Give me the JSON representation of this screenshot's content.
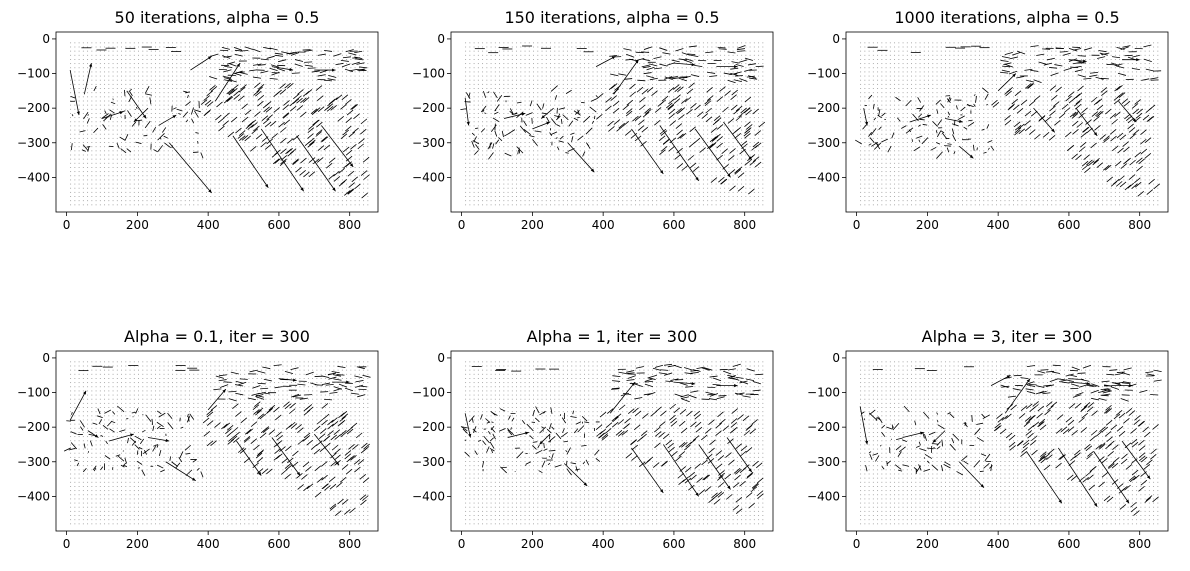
{
  "figure": {
    "background": "#ffffff"
  },
  "chart_data": [
    {
      "type": "quiver",
      "title": "50 iterations, alpha = 0.5",
      "xlim": [
        -30,
        880
      ],
      "ylim": [
        -500,
        20
      ],
      "xticks": [
        0,
        200,
        400,
        600,
        800
      ],
      "yticks": [
        0,
        -100,
        -200,
        -300,
        -400
      ],
      "grid": false,
      "vectors": [
        {
          "x": 290,
          "y": -300,
          "u": 120,
          "v": -145
        },
        {
          "x": 10,
          "y": -90,
          "u": 25,
          "v": -130
        },
        {
          "x": 170,
          "y": -150,
          "u": 55,
          "v": -80
        },
        {
          "x": 420,
          "y": -180,
          "u": 70,
          "v": 110
        },
        {
          "x": 470,
          "y": -280,
          "u": 100,
          "v": -150
        },
        {
          "x": 550,
          "y": -260,
          "u": 120,
          "v": -180
        },
        {
          "x": 650,
          "y": -280,
          "u": 110,
          "v": -160
        },
        {
          "x": 720,
          "y": -250,
          "u": 90,
          "v": -120
        },
        {
          "x": 100,
          "y": -230,
          "u": 60,
          "v": 20
        },
        {
          "x": 230,
          "y": -200,
          "u": -40,
          "v": -40
        },
        {
          "x": 350,
          "y": -90,
          "u": 60,
          "v": 40
        },
        {
          "x": 580,
          "y": -80,
          "u": 60,
          "v": -10
        },
        {
          "x": 700,
          "y": -90,
          "u": 60,
          "v": 0
        },
        {
          "x": 260,
          "y": -250,
          "u": 50,
          "v": 30
        },
        {
          "x": 50,
          "y": -160,
          "u": 20,
          "v": 90
        }
      ]
    },
    {
      "type": "quiver",
      "title": "150 iterations, alpha = 0.5",
      "xlim": [
        -30,
        880
      ],
      "ylim": [
        -500,
        20
      ],
      "xticks": [
        0,
        200,
        400,
        600,
        800
      ],
      "yticks": [
        0,
        -100,
        -200,
        -300,
        -400
      ],
      "grid": false,
      "vectors": [
        {
          "x": 300,
          "y": -300,
          "u": 75,
          "v": -85
        },
        {
          "x": 10,
          "y": -170,
          "u": 10,
          "v": -80
        },
        {
          "x": 430,
          "y": -160,
          "u": 70,
          "v": 100
        },
        {
          "x": 480,
          "y": -260,
          "u": 90,
          "v": -130
        },
        {
          "x": 560,
          "y": -250,
          "u": 110,
          "v": -160
        },
        {
          "x": 660,
          "y": -260,
          "u": 100,
          "v": -140
        },
        {
          "x": 740,
          "y": -240,
          "u": 80,
          "v": -110
        },
        {
          "x": 120,
          "y": -230,
          "u": 60,
          "v": 15
        },
        {
          "x": 260,
          "y": -200,
          "u": -35,
          "v": -30
        },
        {
          "x": 380,
          "y": -80,
          "u": 55,
          "v": 30
        },
        {
          "x": 600,
          "y": -70,
          "u": 60,
          "v": -5
        },
        {
          "x": 720,
          "y": -80,
          "u": 60,
          "v": 0
        },
        {
          "x": 200,
          "y": -260,
          "u": 50,
          "v": 20
        }
      ]
    },
    {
      "type": "quiver",
      "title": "1000 iterations, alpha = 0.5",
      "xlim": [
        -30,
        880
      ],
      "ylim": [
        -500,
        20
      ],
      "xticks": [
        0,
        200,
        400,
        600,
        800
      ],
      "yticks": [
        0,
        -100,
        -200,
        -300,
        -400
      ],
      "grid": false,
      "vectors": [
        {
          "x": 290,
          "y": -310,
          "u": 40,
          "v": -35
        },
        {
          "x": 20,
          "y": -200,
          "u": 10,
          "v": -50
        },
        {
          "x": 150,
          "y": -240,
          "u": 60,
          "v": 20
        },
        {
          "x": 250,
          "y": -230,
          "u": 50,
          "v": -10
        },
        {
          "x": 400,
          "y": -150,
          "u": 50,
          "v": 50
        },
        {
          "x": 500,
          "y": -200,
          "u": 60,
          "v": -70
        },
        {
          "x": 620,
          "y": -200,
          "u": 60,
          "v": -80
        },
        {
          "x": 740,
          "y": -180,
          "u": 50,
          "v": -60
        },
        {
          "x": 600,
          "y": -60,
          "u": 50,
          "v": -5
        },
        {
          "x": 750,
          "y": -60,
          "u": 50,
          "v": 0
        }
      ]
    },
    {
      "type": "quiver",
      "title": "Alpha = 0.1, iter = 300",
      "xlim": [
        -30,
        880
      ],
      "ylim": [
        -500,
        20
      ],
      "xticks": [
        0,
        200,
        400,
        600,
        800
      ],
      "yticks": [
        0,
        -100,
        -200,
        -300,
        -400
      ],
      "grid": false,
      "vectors": [
        {
          "x": 280,
          "y": -300,
          "u": 85,
          "v": -55
        },
        {
          "x": 10,
          "y": -180,
          "u": 45,
          "v": 85
        },
        {
          "x": 120,
          "y": -240,
          "u": 70,
          "v": 20
        },
        {
          "x": 230,
          "y": -230,
          "u": 60,
          "v": -10
        },
        {
          "x": 400,
          "y": -150,
          "u": 50,
          "v": 60
        },
        {
          "x": 480,
          "y": -240,
          "u": 70,
          "v": -100
        },
        {
          "x": 580,
          "y": -230,
          "u": 80,
          "v": -110
        },
        {
          "x": 700,
          "y": -220,
          "u": 70,
          "v": -90
        },
        {
          "x": 600,
          "y": -60,
          "u": 50,
          "v": -5
        },
        {
          "x": 750,
          "y": -70,
          "u": 50,
          "v": 0
        },
        {
          "x": 60,
          "y": -210,
          "u": 30,
          "v": -20
        }
      ]
    },
    {
      "type": "quiver",
      "title": "Alpha = 1, iter = 300",
      "xlim": [
        -30,
        880
      ],
      "ylim": [
        -500,
        20
      ],
      "xticks": [
        0,
        200,
        400,
        600,
        800
      ],
      "yticks": [
        0,
        -100,
        -200,
        -300,
        -400
      ],
      "grid": false,
      "vectors": [
        {
          "x": 290,
          "y": -305,
          "u": 65,
          "v": -65
        },
        {
          "x": 10,
          "y": -160,
          "u": 15,
          "v": -70
        },
        {
          "x": 130,
          "y": -230,
          "u": 60,
          "v": 15
        },
        {
          "x": 250,
          "y": -220,
          "u": -30,
          "v": -30
        },
        {
          "x": 420,
          "y": -160,
          "u": 70,
          "v": 90
        },
        {
          "x": 480,
          "y": -260,
          "u": 90,
          "v": -130
        },
        {
          "x": 570,
          "y": -250,
          "u": 100,
          "v": -150
        },
        {
          "x": 670,
          "y": -250,
          "u": 90,
          "v": -130
        },
        {
          "x": 750,
          "y": -230,
          "u": 70,
          "v": -100
        },
        {
          "x": 600,
          "y": -70,
          "u": 60,
          "v": -5
        },
        {
          "x": 720,
          "y": -80,
          "u": 60,
          "v": 0
        }
      ]
    },
    {
      "type": "quiver",
      "title": "Alpha = 3, iter = 300",
      "xlim": [
        -30,
        880
      ],
      "ylim": [
        -500,
        20
      ],
      "xticks": [
        0,
        200,
        400,
        600,
        800
      ],
      "yticks": [
        0,
        -100,
        -200,
        -300,
        -400
      ],
      "grid": false,
      "vectors": [
        {
          "x": 290,
          "y": -300,
          "u": 70,
          "v": -75
        },
        {
          "x": 10,
          "y": -140,
          "u": 20,
          "v": -110
        },
        {
          "x": 130,
          "y": -230,
          "u": 60,
          "v": 15
        },
        {
          "x": 250,
          "y": -210,
          "u": -35,
          "v": -35
        },
        {
          "x": 420,
          "y": -160,
          "u": 70,
          "v": 100
        },
        {
          "x": 480,
          "y": -270,
          "u": 100,
          "v": -150
        },
        {
          "x": 570,
          "y": -260,
          "u": 110,
          "v": -170
        },
        {
          "x": 670,
          "y": -270,
          "u": 100,
          "v": -150
        },
        {
          "x": 750,
          "y": -240,
          "u": 80,
          "v": -110
        },
        {
          "x": 380,
          "y": -80,
          "u": 55,
          "v": 30
        },
        {
          "x": 600,
          "y": -70,
          "u": 60,
          "v": -5
        },
        {
          "x": 720,
          "y": -80,
          "u": 60,
          "v": 0
        }
      ]
    }
  ]
}
